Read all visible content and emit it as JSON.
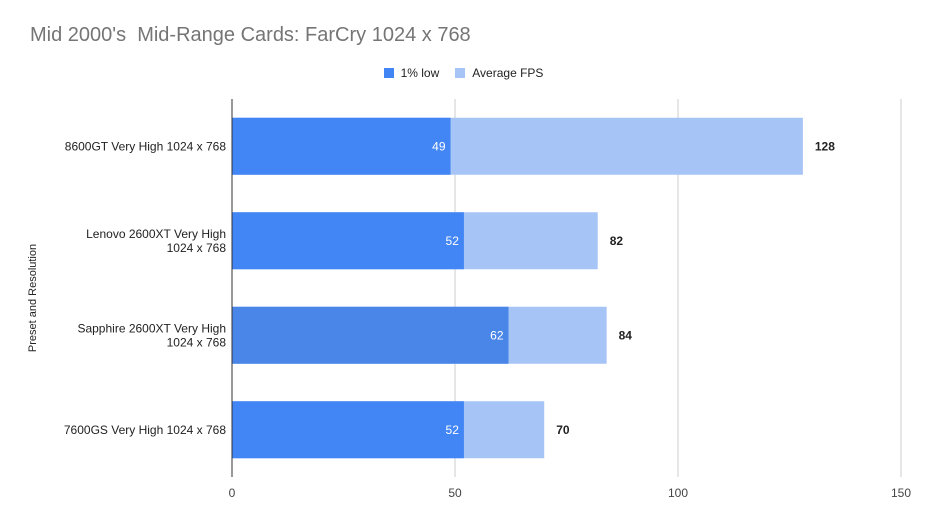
{
  "chart_data": {
    "type": "bar",
    "orientation": "horizontal",
    "stacking": "overlay",
    "title": "Mid 2000's  Mid-Range Cards: FarCry 1024 x 768",
    "xlabel": "",
    "ylabel": "Preset and Resolution",
    "xlim": [
      0,
      150
    ],
    "xticks": [
      0,
      50,
      100,
      150
    ],
    "grid": true,
    "legend_position": "top-center",
    "categories": [
      [
        "8600GT Very High 1024 x 768"
      ],
      [
        "Lenovo 2600XT Very High",
        "1024 x 768"
      ],
      [
        "Sapphire 2600XT Very High",
        "1024 x 768"
      ],
      [
        "7600GS Very High 1024 x 768"
      ]
    ],
    "series": [
      {
        "name": "1% low",
        "color": "#4285f4",
        "values": [
          49,
          52,
          62,
          52
        ]
      },
      {
        "name": "Average FPS",
        "color": "#a6c4f5",
        "values": [
          128,
          82,
          84,
          70
        ]
      }
    ],
    "bar_colors_1pct_low": [
      "#4285f4",
      "#4285f4",
      "#4a86e8",
      "#4285f4"
    ]
  }
}
